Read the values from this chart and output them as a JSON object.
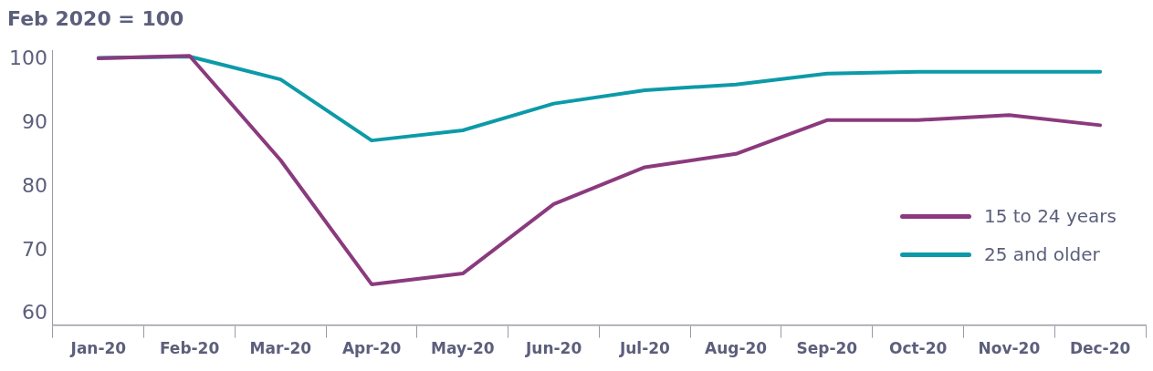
{
  "chart_data": {
    "type": "line",
    "ylabel": "Feb 2020 = 100",
    "categories": [
      "Jan-20",
      "Feb-20",
      "Mar-20",
      "Apr-20",
      "May-20",
      "Jun-20",
      "Jul-20",
      "Aug-20",
      "Sep-20",
      "Oct-20",
      "Nov-20",
      "Dec-20"
    ],
    "series": [
      {
        "name": "15 to 24 years",
        "color": "#8b3a7e",
        "values": [
          100.2,
          100.6,
          84.2,
          64.7,
          66.4,
          77.3,
          83.1,
          85.2,
          90.5,
          90.5,
          91.3,
          89.7
        ]
      },
      {
        "name": "25 and older",
        "color": "#0d9aa8",
        "values": [
          100.3,
          100.5,
          96.9,
          87.3,
          88.9,
          93.1,
          95.2,
          96.1,
          97.8,
          98.1,
          98.1,
          98.1
        ]
      }
    ],
    "ylim": [
      58.3,
      101.5
    ],
    "yticks": [
      60,
      70,
      80,
      90,
      100
    ],
    "grid": false,
    "legend": "right",
    "marker": "none",
    "line_style": "solid"
  }
}
